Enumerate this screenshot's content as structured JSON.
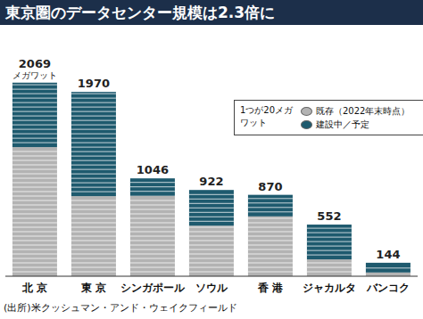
{
  "chart_data": {
    "type": "bar",
    "title": "東京圏のデータセンター規模は2.3倍に",
    "categories": [
      "北 京",
      "東 京",
      "シンガポール",
      "ソウル",
      "香 港",
      "ジャカルタ",
      "バンコク"
    ],
    "series": [
      {
        "name": "既存（2022年末時点）",
        "color": "#b3b3b3",
        "values": [
          1380,
          856,
          860,
          540,
          640,
          180,
          40
        ]
      },
      {
        "name": "建設中／予定",
        "color": "#1e5a6e",
        "values": [
          689,
          1114,
          186,
          382,
          230,
          372,
          104
        ]
      }
    ],
    "totals": [
      2069,
      1970,
      1046,
      922,
      870,
      552,
      144
    ],
    "unit": "メガワット",
    "unit_note": "1つが20メガワット",
    "source": "(出所)米クッシュマン・アンド・ウェイクフィールド",
    "ylim": [
      0,
      2400
    ],
    "stacked": true,
    "grid": false,
    "tick_labels": "x",
    "legend": "right"
  }
}
